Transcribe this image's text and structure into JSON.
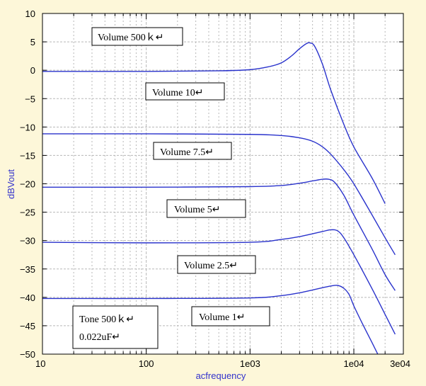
{
  "chart_data": {
    "type": "line",
    "title": "",
    "xlabel": "acfrequency",
    "ylabel": "dBVout",
    "x_scale": "log",
    "xlim": [
      10,
      30000
    ],
    "ylim": [
      -50,
      10
    ],
    "grid": true,
    "x_ticks": [
      {
        "value": 10,
        "label": "10"
      },
      {
        "value": 100,
        "label": "100"
      },
      {
        "value": 1000,
        "label": "1e03"
      },
      {
        "value": 10000,
        "label": "1e04"
      },
      {
        "value": 30000,
        "label": "3e04"
      }
    ],
    "y_ticks": [
      10,
      5,
      0,
      -5,
      -10,
      -15,
      -20,
      -25,
      -30,
      -35,
      -40,
      -45,
      -50
    ],
    "y_tick_labels": [
      "10",
      "5",
      "0",
      "−5",
      "−10",
      "−15",
      "−20",
      "−25",
      "−30",
      "−35",
      "−40",
      "−45",
      "−50"
    ],
    "series": [
      {
        "name": "Volume 10",
        "points": [
          [
            10,
            -0.2
          ],
          [
            100,
            -0.2
          ],
          [
            500,
            -0.1
          ],
          [
            1000,
            0.1
          ],
          [
            1500,
            0.6
          ],
          [
            2000,
            1.3
          ],
          [
            2500,
            2.5
          ],
          [
            3000,
            3.8
          ],
          [
            3500,
            4.7
          ],
          [
            3800,
            4.8
          ],
          [
            4200,
            4.2
          ],
          [
            5000,
            1.0
          ],
          [
            6000,
            -3.5
          ],
          [
            8000,
            -9.5
          ],
          [
            10000,
            -13.5
          ],
          [
            15000,
            -19.0
          ],
          [
            20000,
            -23.5
          ]
        ]
      },
      {
        "name": "Volume 7.5",
        "points": [
          [
            10,
            -11.2
          ],
          [
            100,
            -11.2
          ],
          [
            1000,
            -11.3
          ],
          [
            2000,
            -11.5
          ],
          [
            3000,
            -11.9
          ],
          [
            4000,
            -12.5
          ],
          [
            5000,
            -13.5
          ],
          [
            6000,
            -14.8
          ],
          [
            8000,
            -17.5
          ],
          [
            10000,
            -20.0
          ],
          [
            15000,
            -25.5
          ],
          [
            20000,
            -29.5
          ],
          [
            25000,
            -32.5
          ]
        ]
      },
      {
        "name": "Volume 5",
        "points": [
          [
            10,
            -20.6
          ],
          [
            100,
            -20.6
          ],
          [
            1000,
            -20.5
          ],
          [
            2000,
            -20.3
          ],
          [
            3000,
            -19.9
          ],
          [
            4000,
            -19.5
          ],
          [
            5000,
            -19.2
          ],
          [
            5700,
            -19.2
          ],
          [
            6500,
            -19.7
          ],
          [
            8000,
            -22.0
          ],
          [
            10000,
            -25.5
          ],
          [
            15000,
            -31.5
          ],
          [
            20000,
            -36.0
          ],
          [
            25000,
            -38.8
          ]
        ]
      },
      {
        "name": "Volume 2.5",
        "points": [
          [
            10,
            -30.3
          ],
          [
            100,
            -30.4
          ],
          [
            1000,
            -30.3
          ],
          [
            2000,
            -29.8
          ],
          [
            3000,
            -29.3
          ],
          [
            4000,
            -28.8
          ],
          [
            5000,
            -28.4
          ],
          [
            6000,
            -28.1
          ],
          [
            7000,
            -28.3
          ],
          [
            8000,
            -29.5
          ],
          [
            10000,
            -32.5
          ],
          [
            15000,
            -38.5
          ],
          [
            20000,
            -43.0
          ],
          [
            25000,
            -46.5
          ]
        ]
      },
      {
        "name": "Volume 1",
        "points": [
          [
            10,
            -40.2
          ],
          [
            100,
            -40.2
          ],
          [
            1000,
            -40.1
          ],
          [
            2000,
            -39.7
          ],
          [
            3000,
            -39.2
          ],
          [
            4000,
            -38.7
          ],
          [
            5000,
            -38.3
          ],
          [
            6000,
            -38.0
          ],
          [
            7000,
            -37.9
          ],
          [
            8000,
            -38.4
          ],
          [
            9000,
            -39.5
          ],
          [
            10000,
            -41.5
          ],
          [
            12000,
            -44.5
          ],
          [
            15000,
            -48.0
          ],
          [
            17000,
            -50.0
          ]
        ]
      }
    ],
    "annotations": [
      {
        "text": "Volume 500ｋ↵"
      },
      {
        "text": "Volume 10↵"
      },
      {
        "text": "Volume 7.5↵"
      },
      {
        "text": "Volume 5↵"
      },
      {
        "text": "Volume 2.5↵"
      },
      {
        "text": "Volume 1↵"
      },
      {
        "text": "Tone 500ｋ↵"
      },
      {
        "text": "0.022uF↵"
      }
    ],
    "colors": {
      "line": "#2a33cc",
      "grid": "#b8b8b8",
      "axis_text": "#3333cc",
      "tick_text": "#000000",
      "background": "#fdf7d9",
      "plot_bg": "#ffffff"
    }
  }
}
